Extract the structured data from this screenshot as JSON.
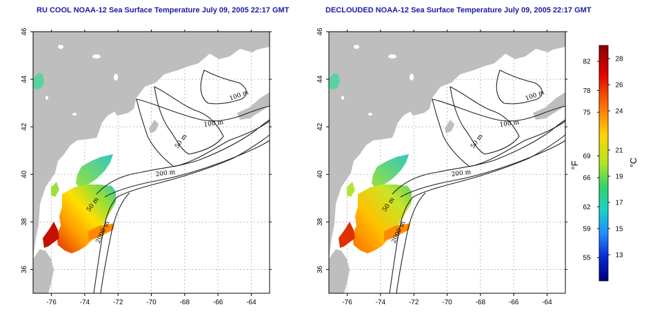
{
  "panels": [
    {
      "title": "RU COOL NOAA-12 Sea Surface Temperature July 09, 2005 22:17 GMT",
      "contour_labels": [
        "100 m",
        "100 m",
        "50 m",
        "200 m",
        "50 m",
        "2000 m"
      ]
    },
    {
      "title": "DECLOUDED NOAA-12 Sea Surface Temperature July 09, 2005 22:17 GMT",
      "contour_labels": [
        "100 m",
        "100 m",
        "50 m",
        "200 m",
        "50 m",
        "2000 m"
      ]
    }
  ],
  "axes": {
    "x_ticks": [
      "-76",
      "-74",
      "-72",
      "-70",
      "-68",
      "-66",
      "-64"
    ],
    "y_ticks": [
      "46",
      "44",
      "42",
      "40",
      "38",
      "36"
    ],
    "x_range": [
      -77.1,
      -62.9
    ],
    "y_range": [
      35,
      46
    ]
  },
  "colorbar": {
    "f_ticks": [
      "82",
      "78",
      "75",
      "69",
      "66",
      "62",
      "59",
      "55"
    ],
    "c_ticks": [
      "28",
      "26",
      "24",
      "21",
      "19",
      "17",
      "15",
      "13"
    ],
    "f_label": "°F",
    "c_label": "°C",
    "range_c": [
      11,
      29
    ]
  },
  "colors": {
    "land": "#bebebe",
    "title": "#1a1aa8",
    "grid": "#aaaaaa"
  }
}
